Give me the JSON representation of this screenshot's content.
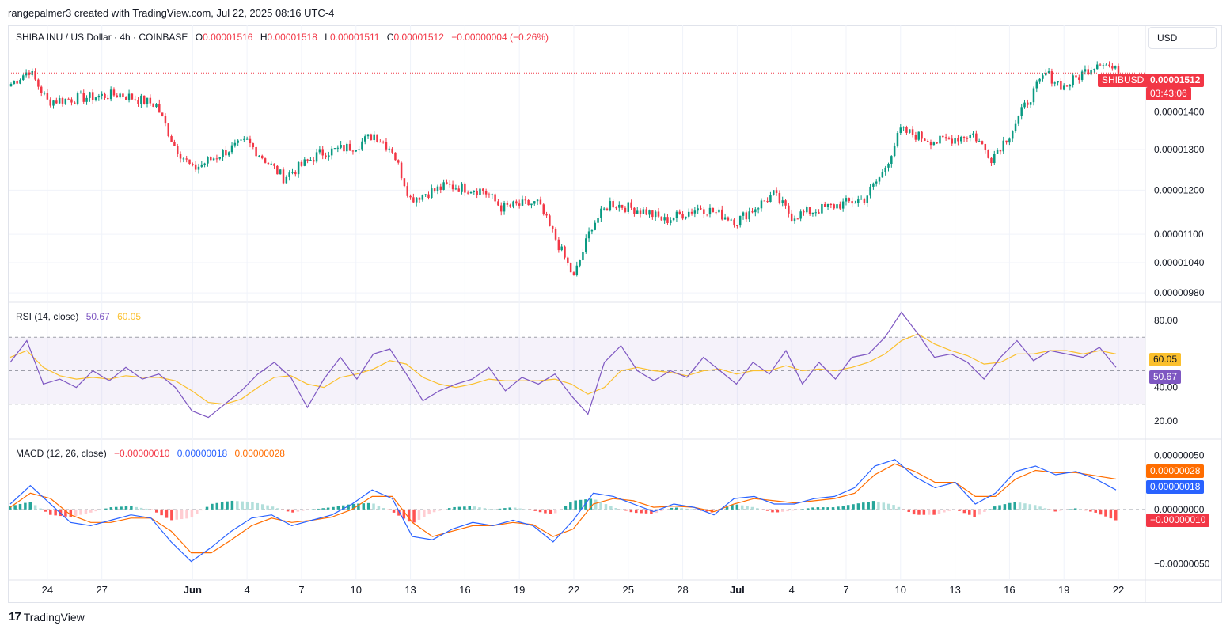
{
  "header": {
    "caption": "rangepalmer3 created with TradingView.com, Jul 22, 2025 08:16 UTC-4"
  },
  "symbol": {
    "title": "SHIBA INU / US Dollar · 4h · COINBASE",
    "o_label": "O",
    "o_value": "0.00001516",
    "h_label": "H",
    "h_value": "0.00001518",
    "l_label": "L",
    "l_value": "0.00001511",
    "c_label": "C",
    "c_value": "0.00001512",
    "change": "−0.00000004 (−0.26%)",
    "ticker_tag": "SHIBUSD",
    "last_price": "0.00001512",
    "countdown": "03:43:06"
  },
  "currency_button": "USD",
  "colors": {
    "up": "#089981",
    "down": "#f23645",
    "rsi": "#7e57c2",
    "rsi_ma": "#fbc02d",
    "macd": "#2962ff",
    "signal": "#ff6d00",
    "hist_up_strong": "#26a69a",
    "hist_up_weak": "#b2dfdb",
    "hist_down_strong": "#ff5252",
    "hist_down_weak": "#ffcdd2",
    "grid": "#f0f3fa",
    "axis_text": "#131722"
  },
  "rsi_legend": {
    "title": "RSI (14, close)",
    "rsi_value": "50.67",
    "ma_value": "60.05"
  },
  "macd_legend": {
    "title": "MACD (12, 26, close)",
    "hist_value": "−0.00000010",
    "macd_value": "0.00000018",
    "signal_value": "0.00000028"
  },
  "footer": {
    "brand": "TradingView"
  },
  "chart_data": [
    {
      "type": "candlestick",
      "title": "SHIBA INU / US Dollar · 4h · COINBASE",
      "y_scale": "log",
      "x_tick_labels": [
        "24",
        "27",
        "Jun",
        "4",
        "7",
        "10",
        "13",
        "16",
        "19",
        "22",
        "25",
        "28",
        "Jul",
        "4",
        "7",
        "10",
        "13",
        "16",
        "19",
        "22"
      ],
      "x_range": [
        "2025-05-22",
        "2025-07-22"
      ],
      "y_tick_labels": [
        "0.00001400",
        "0.00001300",
        "0.00001200",
        "0.00001100",
        "0.00001040",
        "0.00000980"
      ],
      "approx_close_path": [
        {
          "date": "2025-05-22",
          "close": 1.48e-05
        },
        {
          "date": "2025-05-23",
          "close": 1.52e-05
        },
        {
          "date": "2025-05-24",
          "close": 1.43e-05
        },
        {
          "date": "2025-05-26",
          "close": 1.44e-05
        },
        {
          "date": "2025-05-28",
          "close": 1.45e-05
        },
        {
          "date": "2025-05-30",
          "close": 1.42e-05
        },
        {
          "date": "2025-05-31",
          "close": 1.31e-05
        },
        {
          "date": "2025-06-01",
          "close": 1.25e-05
        },
        {
          "date": "2025-06-03",
          "close": 1.3e-05
        },
        {
          "date": "2025-06-04",
          "close": 1.32e-05
        },
        {
          "date": "2025-06-06",
          "close": 1.23e-05
        },
        {
          "date": "2025-06-08",
          "close": 1.29e-05
        },
        {
          "date": "2025-06-10",
          "close": 1.31e-05
        },
        {
          "date": "2025-06-11",
          "close": 1.34e-05
        },
        {
          "date": "2025-06-12",
          "close": 1.3e-05
        },
        {
          "date": "2025-06-13",
          "close": 1.18e-05
        },
        {
          "date": "2025-06-15",
          "close": 1.21e-05
        },
        {
          "date": "2025-06-17",
          "close": 1.2e-05
        },
        {
          "date": "2025-06-18",
          "close": 1.16e-05
        },
        {
          "date": "2025-06-20",
          "close": 1.17e-05
        },
        {
          "date": "2025-06-21",
          "close": 1.09e-05
        },
        {
          "date": "2025-06-22",
          "close": 1.01e-05
        },
        {
          "date": "2025-06-23",
          "close": 1.12e-05
        },
        {
          "date": "2025-06-24",
          "close": 1.17e-05
        },
        {
          "date": "2025-06-26",
          "close": 1.15e-05
        },
        {
          "date": "2025-06-27",
          "close": 1.13e-05
        },
        {
          "date": "2025-06-29",
          "close": 1.16e-05
        },
        {
          "date": "2025-07-01",
          "close": 1.13e-05
        },
        {
          "date": "2025-07-03",
          "close": 1.19e-05
        },
        {
          "date": "2025-07-04",
          "close": 1.14e-05
        },
        {
          "date": "2025-07-06",
          "close": 1.16e-05
        },
        {
          "date": "2025-07-08",
          "close": 1.18e-05
        },
        {
          "date": "2025-07-09",
          "close": 1.24e-05
        },
        {
          "date": "2025-07-10",
          "close": 1.35e-05
        },
        {
          "date": "2025-07-12",
          "close": 1.32e-05
        },
        {
          "date": "2025-07-14",
          "close": 1.34e-05
        },
        {
          "date": "2025-07-15",
          "close": 1.28e-05
        },
        {
          "date": "2025-07-16",
          "close": 1.34e-05
        },
        {
          "date": "2025-07-17",
          "close": 1.43e-05
        },
        {
          "date": "2025-07-18",
          "close": 1.51e-05
        },
        {
          "date": "2025-07-19",
          "close": 1.47e-05
        },
        {
          "date": "2025-07-20",
          "close": 1.51e-05
        },
        {
          "date": "2025-07-21",
          "close": 1.55e-05
        },
        {
          "date": "2025-07-22",
          "close": 1.512e-05
        }
      ]
    },
    {
      "type": "line",
      "title": "RSI (14, close)",
      "y_tick_labels": [
        "80.00",
        "40.00",
        "20.00"
      ],
      "bands": [
        30,
        70
      ],
      "series": [
        {
          "name": "RSI",
          "last": 50.67,
          "values": [
            55,
            68,
            42,
            45,
            40,
            50,
            44,
            52,
            45,
            48,
            40,
            26,
            22,
            30,
            38,
            48,
            55,
            46,
            28,
            45,
            58,
            45,
            60,
            63,
            48,
            32,
            38,
            42,
            45,
            52,
            38,
            46,
            42,
            48,
            35,
            24,
            55,
            65,
            50,
            44,
            50,
            46,
            58,
            50,
            42,
            55,
            48,
            62,
            42,
            55,
            45,
            58,
            60,
            70,
            85,
            72,
            58,
            60,
            55,
            45,
            58,
            68,
            56,
            62,
            60,
            58,
            64,
            52
          ]
        },
        {
          "name": "MA",
          "last": 60.05,
          "values": [
            58,
            62,
            52,
            47,
            45,
            46,
            45,
            47,
            46,
            46,
            44,
            38,
            31,
            30,
            33,
            40,
            46,
            47,
            42,
            40,
            46,
            48,
            51,
            56,
            54,
            46,
            42,
            40,
            42,
            45,
            44,
            44,
            44,
            45,
            42,
            36,
            40,
            50,
            52,
            50,
            49,
            47,
            50,
            51,
            48,
            50,
            50,
            53,
            50,
            51,
            50,
            52,
            55,
            60,
            68,
            72,
            66,
            62,
            59,
            54,
            55,
            60,
            60,
            62,
            62,
            60,
            62,
            60
          ]
        }
      ]
    },
    {
      "type": "line",
      "title": "MACD (12, 26, close)",
      "y_tick_labels": [
        "0.00000050",
        "0.00000000",
        "−0.00000050"
      ],
      "series": [
        {
          "name": "MACD",
          "last": 1.8e-07,
          "values": [
            5e-08,
            2.2e-07,
            5e-08,
            -1.2e-07,
            -1.5e-07,
            -1e-07,
            -5e-08,
            -8e-08,
            -3e-07,
            -4.8e-07,
            -3.5e-07,
            -2e-07,
            -8e-08,
            -5e-08,
            -1.5e-07,
            -1e-07,
            -5e-08,
            5e-08,
            1.8e-07,
            1e-07,
            -2.5e-07,
            -2.8e-07,
            -1.8e-07,
            -1.2e-07,
            -1.5e-07,
            -1e-07,
            -1.5e-07,
            -3e-07,
            -1e-07,
            1.5e-07,
            1.2e-07,
            5e-08,
            -2e-08,
            5e-08,
            2e-08,
            -5e-08,
            1e-07,
            1.2e-07,
            5e-08,
            5e-08,
            1e-07,
            1.2e-07,
            2e-07,
            4e-07,
            4.6e-07,
            3e-07,
            2e-07,
            2.5e-07,
            5e-08,
            1.5e-07,
            3.5e-07,
            4e-07,
            3.2e-07,
            3.5e-07,
            2.8e-07,
            1.8e-07
          ]
        },
        {
          "name": "Signal",
          "last": 2.8e-07,
          "values": [
            2e-08,
            1.5e-07,
            1e-07,
            -5e-08,
            -1.2e-07,
            -1.2e-07,
            -8e-08,
            -8e-08,
            -2e-07,
            -4e-07,
            -4e-07,
            -2.8e-07,
            -1.5e-07,
            -8e-08,
            -1.2e-07,
            -1e-07,
            -7e-08,
            0.0,
            1.2e-07,
            1.2e-07,
            -1.2e-07,
            -2.5e-07,
            -2e-07,
            -1.5e-07,
            -1.5e-07,
            -1.2e-07,
            -1.4e-07,
            -2.5e-07,
            -1.8e-07,
            5e-08,
            1e-07,
            8e-08,
            2e-08,
            3e-08,
            2e-08,
            -2e-08,
            5e-08,
            1e-07,
            8e-08,
            6e-08,
            8e-08,
            1e-07,
            1.5e-07,
            3.2e-07,
            4.2e-07,
            3.5e-07,
            2.5e-07,
            2.5e-07,
            1.2e-07,
            1.2e-07,
            2.8e-07,
            3.6e-07,
            3.4e-07,
            3.4e-07,
            3.1e-07,
            2.8e-07
          ]
        }
      ]
    }
  ]
}
